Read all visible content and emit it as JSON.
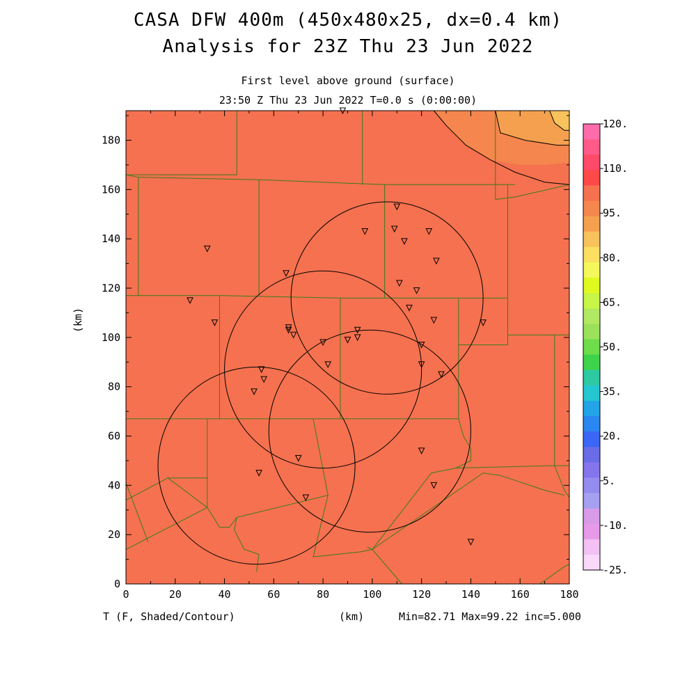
{
  "header": {
    "title_line1": "CASA DFW 400m (450x480x25, dx=0.4 km)",
    "title_line2": "Analysis for 23Z Thu 23 Jun 2022",
    "subtitle_line1": "First level above ground (surface)",
    "subtitle_line2": "23:50 Z Thu 23 Jun 2022    T=0.0 s (0:00:00)"
  },
  "axes": {
    "xlabel": "(km)",
    "ylabel": "(km)",
    "xlim": [
      0,
      180
    ],
    "ylim": [
      0,
      192
    ],
    "x_ticks": [
      "0",
      "20",
      "40",
      "60",
      "80",
      "100",
      "120",
      "140",
      "160",
      "180"
    ],
    "y_ticks": [
      "0",
      "20",
      "40",
      "60",
      "80",
      "100",
      "120",
      "140",
      "160",
      "180"
    ]
  },
  "footer": {
    "variable_label": "T (F, Shaded/Contour)",
    "xunit": "(km)",
    "stats": "Min=82.71 Max=99.22 inc=5.000"
  },
  "colorbar": {
    "labels": [
      "120.",
      "110.",
      "95.",
      "80.",
      "65.",
      "50.",
      "35.",
      "20.",
      "5.",
      "-10.",
      "-25."
    ],
    "colors": [
      "#ff6cac",
      "#ff5a88",
      "#ff4a6a",
      "#ff4848",
      "#f5714f",
      "#f5864d",
      "#f5a04f",
      "#f8c25c",
      "#fbe061",
      "#f4f85d",
      "#e0fa1f",
      "#c7f548",
      "#b1ea62",
      "#9be25a",
      "#6edc4b",
      "#3dd44c",
      "#2ec8a3",
      "#24c6d0",
      "#23a4e8",
      "#2a86f0",
      "#3c66f5",
      "#6b6be8",
      "#8574ec",
      "#958cf0",
      "#a6a0f0",
      "#d79be8",
      "#e69ae8",
      "#f2c0f2",
      "#fad8fa"
    ]
  },
  "field": {
    "background_color": "#f5714f",
    "warm_band_colors": [
      "#f5864d",
      "#f5a04f",
      "#f8c25c"
    ]
  },
  "radars": [
    {
      "cx": 106,
      "cy": 116,
      "r": 39
    },
    {
      "cx": 80,
      "cy": 87,
      "r": 40
    },
    {
      "cx": 99,
      "cy": 62,
      "r": 41
    },
    {
      "cx": 53,
      "cy": 48,
      "r": 40
    }
  ],
  "stations": [
    [
      88,
      192
    ],
    [
      110,
      153
    ],
    [
      97,
      143
    ],
    [
      109,
      144
    ],
    [
      113,
      139
    ],
    [
      123,
      143
    ],
    [
      126,
      131
    ],
    [
      65,
      126
    ],
    [
      111,
      122
    ],
    [
      118,
      119
    ],
    [
      33,
      136
    ],
    [
      26,
      115
    ],
    [
      36,
      106
    ],
    [
      115,
      112
    ],
    [
      125,
      107
    ],
    [
      145,
      106
    ],
    [
      66,
      104
    ],
    [
      66,
      103
    ],
    [
      68,
      101
    ],
    [
      94,
      103
    ],
    [
      94,
      100
    ],
    [
      90,
      99
    ],
    [
      80,
      98
    ],
    [
      120,
      97
    ],
    [
      82,
      89
    ],
    [
      120,
      89
    ],
    [
      128,
      85
    ],
    [
      55,
      87
    ],
    [
      56,
      83
    ],
    [
      52,
      78
    ],
    [
      70,
      51
    ],
    [
      120,
      54
    ],
    [
      54,
      45
    ],
    [
      125,
      40
    ],
    [
      73,
      35
    ],
    [
      140,
      17
    ]
  ],
  "county_lines": [
    [
      [
        0,
        166
      ],
      [
        45,
        166
      ],
      [
        45,
        192
      ]
    ],
    [
      [
        96,
        192
      ],
      [
        96,
        162
      ]
    ],
    [
      [
        0,
        117
      ],
      [
        5,
        117
      ],
      [
        5,
        165
      ],
      [
        0,
        166
      ]
    ],
    [
      [
        5,
        165
      ],
      [
        54,
        164
      ],
      [
        54,
        117
      ]
    ],
    [
      [
        54,
        164
      ],
      [
        105,
        162
      ],
      [
        158,
        162
      ]
    ],
    [
      [
        105,
        162
      ],
      [
        105,
        116
      ]
    ],
    [
      [
        150,
        192
      ],
      [
        150,
        156
      ],
      [
        158,
        157
      ],
      [
        180,
        162
      ]
    ],
    [
      [
        5,
        117
      ],
      [
        38,
        117
      ],
      [
        38,
        67
      ],
      [
        0,
        67
      ]
    ],
    [
      [
        38,
        117
      ],
      [
        87,
        116
      ],
      [
        87,
        67
      ]
    ],
    [
      [
        87,
        116
      ],
      [
        135,
        116
      ],
      [
        155,
        116
      ]
    ],
    [
      [
        135,
        116
      ],
      [
        135,
        67
      ]
    ],
    [
      [
        135,
        97
      ],
      [
        155,
        97
      ],
      [
        155,
        116
      ],
      [
        155,
        162
      ]
    ],
    [
      [
        155,
        101
      ],
      [
        174,
        101
      ],
      [
        174,
        48
      ],
      [
        180,
        48
      ]
    ],
    [
      [
        174,
        101
      ],
      [
        180,
        101
      ]
    ],
    [
      [
        38,
        67
      ],
      [
        87,
        67
      ],
      [
        135,
        67
      ]
    ],
    [
      [
        33,
        67
      ],
      [
        33,
        31
      ],
      [
        17,
        43
      ],
      [
        33,
        43
      ]
    ],
    [
      [
        0,
        34
      ],
      [
        17,
        43
      ]
    ],
    [
      [
        0,
        14
      ],
      [
        33,
        31
      ],
      [
        38,
        23
      ],
      [
        42,
        23
      ],
      [
        45,
        27
      ]
    ],
    [
      [
        45,
        27
      ],
      [
        82,
        36
      ],
      [
        76,
        11
      ],
      [
        95,
        13
      ],
      [
        100,
        14
      ],
      [
        98,
        15
      ]
    ],
    [
      [
        82,
        36
      ],
      [
        76,
        67
      ]
    ],
    [
      [
        9,
        17
      ],
      [
        0,
        41
      ]
    ],
    [
      [
        134,
        47
      ],
      [
        174,
        48
      ]
    ],
    [
      [
        45,
        27
      ],
      [
        44,
        22
      ],
      [
        48,
        14
      ],
      [
        54,
        12
      ],
      [
        53,
        5
      ]
    ],
    [
      [
        100,
        14
      ],
      [
        145,
        45
      ],
      [
        152,
        44
      ],
      [
        170,
        38
      ],
      [
        178,
        36
      ]
    ],
    [
      [
        100,
        14
      ],
      [
        112,
        0
      ]
    ],
    [
      [
        135,
        67
      ],
      [
        137,
        60
      ],
      [
        140,
        55
      ],
      [
        140,
        50
      ],
      [
        134,
        47
      ],
      [
        124,
        45
      ],
      [
        100,
        14
      ]
    ],
    [
      [
        168,
        0
      ],
      [
        178,
        7
      ],
      [
        180,
        8
      ]
    ],
    [
      [
        174,
        48
      ],
      [
        178,
        38
      ],
      [
        180,
        35
      ]
    ]
  ],
  "warm_bands": [
    {
      "fill_index": 0,
      "points": [
        [
          125,
          192
        ],
        [
          130,
          186
        ],
        [
          138,
          178
        ],
        [
          148,
          172
        ],
        [
          160,
          170
        ],
        [
          170,
          170
        ],
        [
          180,
          171
        ],
        [
          180,
          192
        ]
      ]
    },
    {
      "fill_index": 1,
      "points": [
        [
          150,
          192
        ],
        [
          152,
          183
        ],
        [
          162,
          180
        ],
        [
          175,
          178
        ],
        [
          180,
          178
        ],
        [
          180,
          192
        ]
      ]
    },
    {
      "fill_index": 2,
      "points": [
        [
          172,
          192
        ],
        [
          174,
          187
        ],
        [
          178,
          184
        ],
        [
          180,
          184
        ],
        [
          180,
          192
        ]
      ]
    }
  ],
  "contours": [
    [
      [
        125,
        192
      ],
      [
        130,
        186
      ],
      [
        138,
        178
      ],
      [
        148,
        172
      ],
      [
        158,
        167
      ],
      [
        170,
        163
      ],
      [
        180,
        162
      ]
    ],
    [
      [
        150,
        192
      ],
      [
        152,
        183
      ],
      [
        162,
        180
      ],
      [
        175,
        178
      ],
      [
        180,
        178
      ]
    ],
    [
      [
        172,
        192
      ],
      [
        174,
        187
      ],
      [
        178,
        184
      ],
      [
        180,
        184
      ]
    ]
  ]
}
